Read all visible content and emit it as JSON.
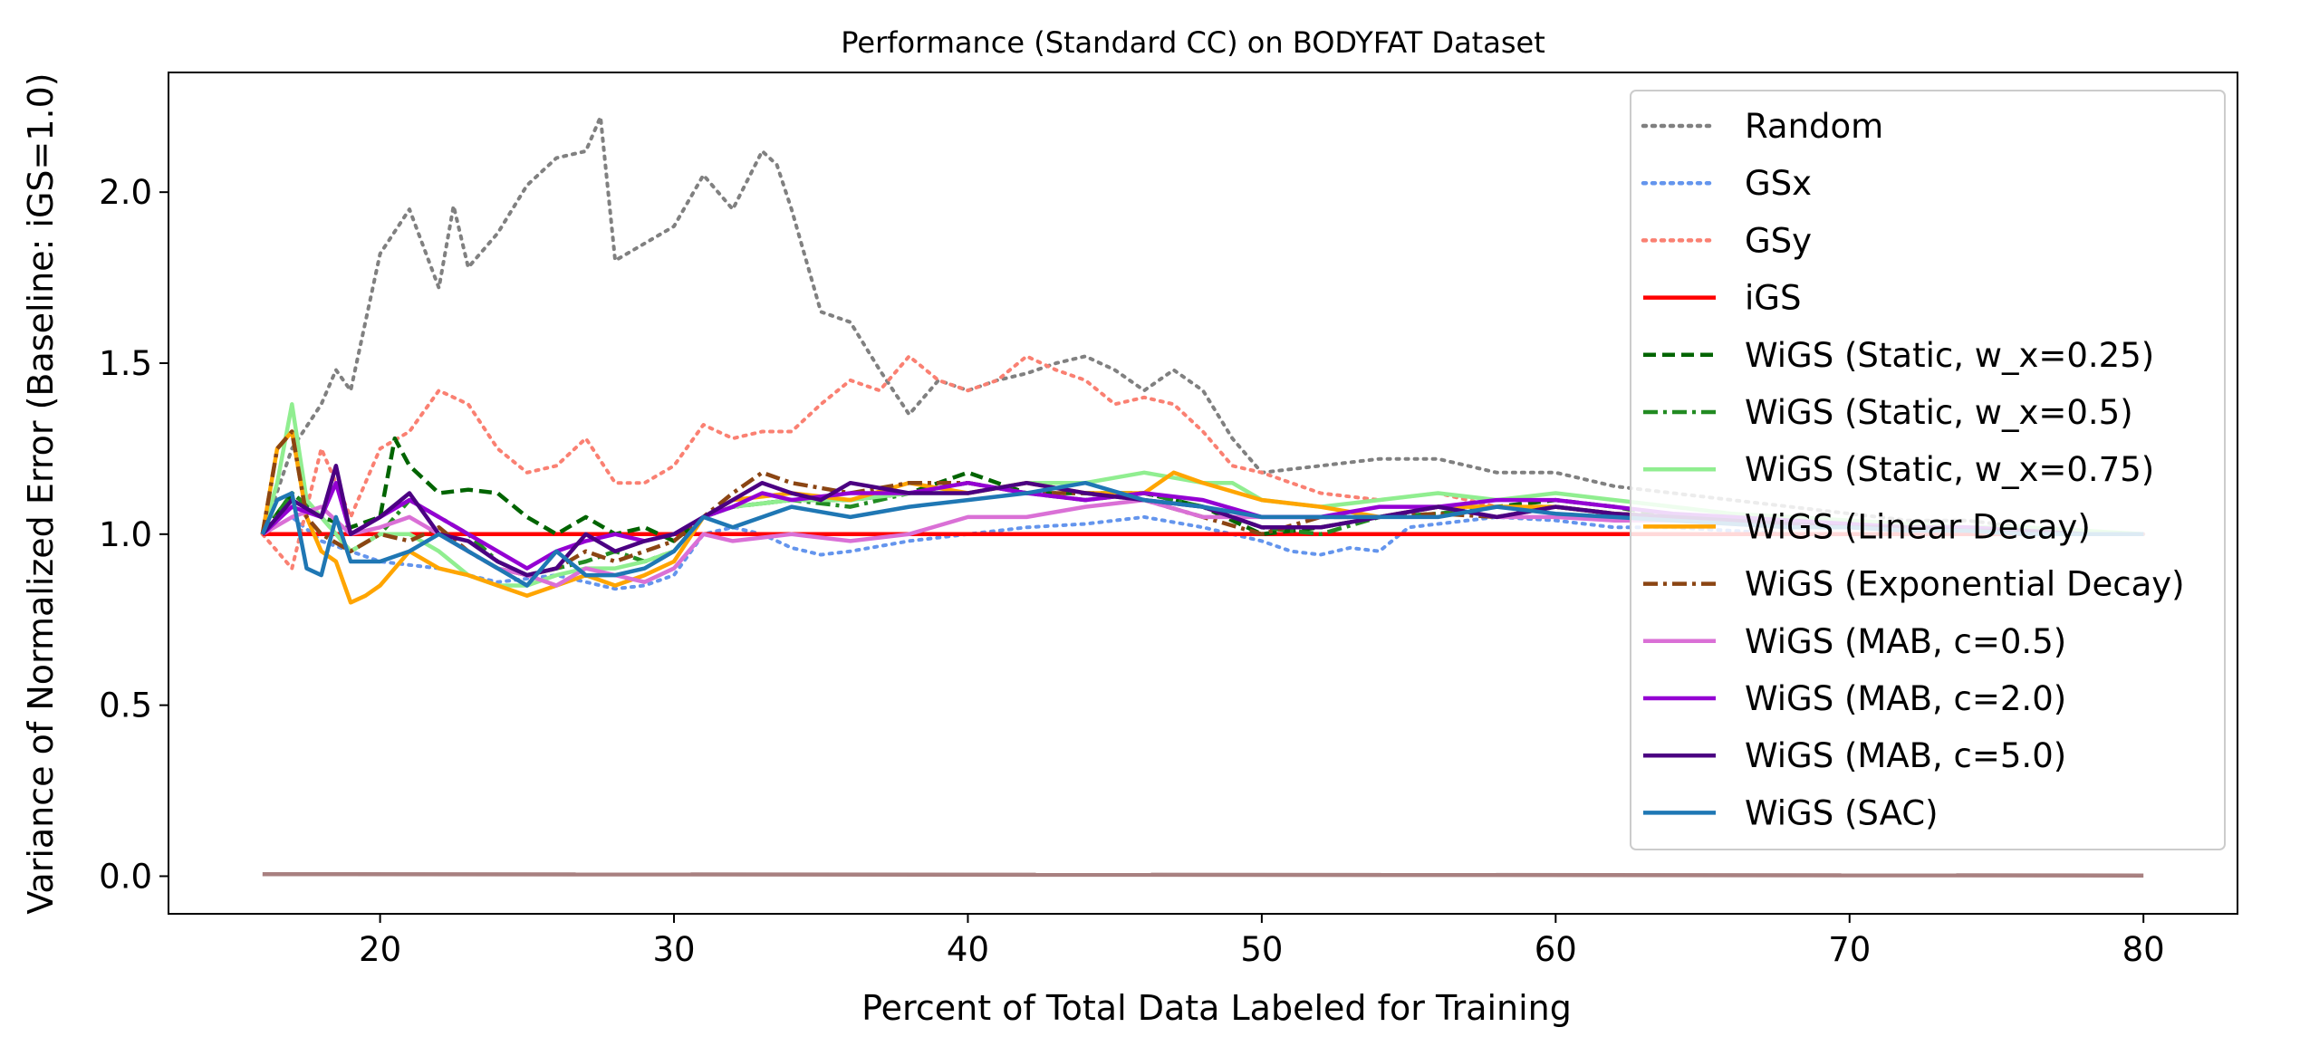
{
  "chart_data": {
    "type": "line",
    "title": "Performance (Standard CC) on BODYFAT Dataset",
    "xlabel": "Percent of Total Data Labeled for Training",
    "ylabel": "Variance of Normalized Error (Baseline: iGS=1.0)",
    "xlim": [
      12.8,
      83.2
    ],
    "ylim": [
      -0.11,
      2.35
    ],
    "xticks": [
      20,
      30,
      40,
      50,
      60,
      70,
      80
    ],
    "yticks": [
      0.0,
      0.5,
      1.0,
      1.5,
      2.0
    ],
    "ytick_labels": [
      "0.0",
      "0.5",
      "1.0",
      "1.5",
      "2.0"
    ],
    "grid": false,
    "legend_position": "upper right",
    "series": [
      {
        "name": "Random",
        "color": "#808080",
        "style": "dotted",
        "x": [
          16,
          17,
          18,
          18.5,
          19,
          20,
          21,
          22,
          22.5,
          23,
          24,
          25,
          26,
          27,
          27.5,
          28,
          29,
          30,
          31,
          32,
          33,
          33.5,
          34,
          35,
          36,
          37,
          38,
          39,
          40,
          41,
          42,
          43,
          44,
          45,
          46,
          47,
          48,
          49,
          50,
          52,
          54,
          56,
          58,
          60,
          62,
          64,
          66,
          68,
          70,
          72,
          74,
          76,
          78,
          80
        ],
        "y": [
          1.0,
          1.25,
          1.38,
          1.48,
          1.42,
          1.82,
          1.95,
          1.72,
          1.96,
          1.78,
          1.88,
          2.02,
          2.1,
          2.12,
          2.22,
          1.8,
          1.85,
          1.9,
          2.05,
          1.95,
          2.12,
          2.08,
          1.95,
          1.65,
          1.62,
          1.48,
          1.35,
          1.45,
          1.42,
          1.45,
          1.47,
          1.5,
          1.52,
          1.48,
          1.42,
          1.48,
          1.42,
          1.28,
          1.18,
          1.2,
          1.22,
          1.22,
          1.18,
          1.18,
          1.14,
          1.12,
          1.1,
          1.08,
          1.06,
          1.04,
          1.04,
          1.02,
          1.0,
          1.0
        ]
      },
      {
        "name": "GSx",
        "color": "#6495ed",
        "style": "dotted",
        "x": [
          16,
          17,
          18,
          19,
          20,
          22,
          24,
          26,
          28,
          29,
          30,
          31,
          32,
          33,
          34,
          35,
          36,
          38,
          40,
          42,
          44,
          46,
          48,
          50,
          51,
          52,
          53,
          54,
          55,
          56,
          58,
          60,
          62,
          64,
          66,
          68,
          70,
          72,
          74,
          76,
          78,
          80
        ],
        "y": [
          1.0,
          1.05,
          0.98,
          0.95,
          0.92,
          0.9,
          0.86,
          0.88,
          0.84,
          0.85,
          0.88,
          1.0,
          1.02,
          1.0,
          0.96,
          0.94,
          0.95,
          0.98,
          1.0,
          1.02,
          1.03,
          1.05,
          1.02,
          0.98,
          0.95,
          0.94,
          0.96,
          0.95,
          1.02,
          1.03,
          1.05,
          1.04,
          1.02,
          1.02,
          1.01,
          1.0,
          1.0,
          1.0,
          1.0,
          1.0,
          1.0,
          1.0
        ]
      },
      {
        "name": "GSy",
        "color": "#fa8072",
        "style": "dotted",
        "x": [
          16,
          17,
          18,
          19,
          20,
          21,
          22,
          23,
          24,
          25,
          26,
          27,
          28,
          29,
          30,
          31,
          32,
          33,
          34,
          35,
          36,
          37,
          38,
          39,
          40,
          41,
          42,
          43,
          44,
          45,
          46,
          47,
          48,
          49,
          50,
          52,
          54,
          56,
          58,
          60,
          62,
          64,
          66,
          68,
          70,
          72,
          74,
          76,
          78,
          80
        ],
        "y": [
          1.0,
          0.9,
          1.25,
          1.05,
          1.25,
          1.3,
          1.42,
          1.38,
          1.25,
          1.18,
          1.2,
          1.28,
          1.15,
          1.15,
          1.2,
          1.32,
          1.28,
          1.3,
          1.3,
          1.38,
          1.45,
          1.42,
          1.52,
          1.45,
          1.42,
          1.45,
          1.52,
          1.48,
          1.45,
          1.38,
          1.4,
          1.38,
          1.3,
          1.2,
          1.18,
          1.12,
          1.1,
          1.12,
          1.08,
          1.06,
          1.05,
          1.04,
          1.03,
          1.02,
          1.02,
          1.01,
          1.0,
          1.0,
          1.0,
          1.0
        ]
      },
      {
        "name": "iGS",
        "color": "#ff0000",
        "style": "solid",
        "x": [
          16,
          80
        ],
        "y": [
          1.0,
          1.0
        ]
      },
      {
        "name": "WiGS (Static, w_x=0.25)",
        "color": "#006400",
        "style": "dashed",
        "x": [
          16,
          17,
          18,
          19,
          20,
          20.5,
          21,
          22,
          23,
          24,
          25,
          26,
          27,
          28,
          29,
          30,
          31,
          32,
          34,
          36,
          38,
          40,
          41,
          42,
          44,
          46,
          48,
          50,
          52,
          54,
          56,
          58,
          60,
          62,
          64,
          66,
          68,
          70,
          72,
          74,
          76,
          78,
          80
        ],
        "y": [
          1.0,
          1.12,
          1.05,
          1.02,
          1.05,
          1.28,
          1.2,
          1.12,
          1.13,
          1.12,
          1.05,
          1.0,
          1.05,
          1.0,
          1.02,
          0.98,
          1.05,
          1.08,
          1.1,
          1.1,
          1.12,
          1.18,
          1.15,
          1.12,
          1.12,
          1.12,
          1.08,
          1.0,
          1.02,
          1.05,
          1.08,
          1.08,
          1.1,
          1.08,
          1.05,
          1.05,
          1.04,
          1.03,
          1.02,
          1.02,
          1.01,
          1.0,
          1.0
        ]
      },
      {
        "name": "WiGS (Static, w_x=0.5)",
        "color": "#228b22",
        "style": "dashdot",
        "x": [
          16,
          17,
          18,
          19,
          20,
          21,
          22,
          23,
          24,
          25,
          26,
          27,
          28,
          29,
          30,
          31,
          32,
          34,
          36,
          38,
          40,
          42,
          44,
          46,
          48,
          50,
          52,
          54,
          56,
          58,
          60,
          62,
          64,
          66,
          68,
          70,
          72,
          74,
          76,
          78,
          80
        ],
        "y": [
          1.0,
          1.12,
          1.05,
          0.95,
          1.0,
          1.1,
          1.05,
          1.0,
          0.92,
          0.88,
          0.9,
          0.92,
          0.95,
          0.92,
          0.95,
          1.05,
          1.08,
          1.1,
          1.08,
          1.12,
          1.15,
          1.12,
          1.1,
          1.12,
          1.08,
          1.02,
          1.0,
          1.05,
          1.06,
          1.08,
          1.08,
          1.06,
          1.05,
          1.04,
          1.03,
          1.02,
          1.02,
          1.01,
          1.0,
          1.0,
          1.0
        ]
      },
      {
        "name": "WiGS (Static, w_x=0.75)",
        "color": "#90ee90",
        "style": "solid",
        "x": [
          16,
          16.5,
          17,
          17.5,
          18,
          19,
          20,
          21,
          22,
          23,
          24,
          25,
          26,
          27,
          28,
          29,
          30,
          31,
          32,
          34,
          36,
          38,
          40,
          42,
          44,
          46,
          48,
          49,
          50,
          52,
          54,
          56,
          58,
          60,
          62,
          64,
          66,
          68,
          70,
          72,
          74,
          76,
          78,
          80
        ],
        "y": [
          1.0,
          1.15,
          1.38,
          1.1,
          1.05,
          0.95,
          1.0,
          1.0,
          0.95,
          0.88,
          0.85,
          0.85,
          0.88,
          0.9,
          0.9,
          0.92,
          0.95,
          1.05,
          1.08,
          1.1,
          1.1,
          1.12,
          1.12,
          1.15,
          1.15,
          1.18,
          1.15,
          1.15,
          1.1,
          1.08,
          1.1,
          1.12,
          1.1,
          1.12,
          1.1,
          1.08,
          1.06,
          1.05,
          1.04,
          1.03,
          1.02,
          1.02,
          1.01,
          1.0
        ]
      },
      {
        "name": "WiGS (Linear Decay)",
        "color": "#ffa500",
        "style": "solid",
        "x": [
          16,
          16.5,
          17,
          17.5,
          18,
          18.5,
          19,
          19.5,
          20,
          21,
          22,
          23,
          24,
          25,
          26,
          27,
          28,
          29,
          30,
          31,
          32,
          34,
          36,
          38,
          40,
          42,
          44,
          46,
          47,
          48,
          50,
          52,
          54,
          56,
          58,
          60,
          62,
          64,
          66,
          68,
          70,
          72,
          74,
          76,
          78,
          80
        ],
        "y": [
          1.0,
          1.25,
          1.3,
          1.05,
          0.95,
          0.92,
          0.8,
          0.82,
          0.85,
          0.95,
          0.9,
          0.88,
          0.85,
          0.82,
          0.85,
          0.88,
          0.85,
          0.88,
          0.92,
          1.05,
          1.1,
          1.12,
          1.1,
          1.15,
          1.12,
          1.15,
          1.12,
          1.12,
          1.18,
          1.15,
          1.1,
          1.08,
          1.05,
          1.08,
          1.08,
          1.08,
          1.06,
          1.05,
          1.04,
          1.03,
          1.02,
          1.02,
          1.01,
          1.01,
          1.0,
          1.0
        ]
      },
      {
        "name": "WiGS (Exponential Decay)",
        "color": "#8b4513",
        "style": "dashdot",
        "x": [
          16,
          16.5,
          17,
          17.5,
          18,
          19,
          20,
          21,
          22,
          23,
          24,
          25,
          26,
          27,
          28,
          29,
          30,
          31,
          32,
          33,
          34,
          36,
          38,
          40,
          42,
          44,
          46,
          48,
          50,
          52,
          54,
          56,
          58,
          60,
          62,
          64,
          66,
          68,
          70,
          72,
          74,
          76,
          78,
          80
        ],
        "y": [
          1.0,
          1.25,
          1.3,
          1.05,
          1.0,
          0.95,
          1.0,
          0.98,
          1.02,
          0.95,
          0.9,
          0.88,
          0.9,
          0.95,
          0.92,
          0.95,
          0.98,
          1.05,
          1.12,
          1.18,
          1.15,
          1.12,
          1.15,
          1.15,
          1.12,
          1.12,
          1.1,
          1.05,
          1.0,
          1.05,
          1.05,
          1.06,
          1.05,
          1.08,
          1.06,
          1.05,
          1.04,
          1.03,
          1.02,
          1.02,
          1.01,
          1.01,
          1.0,
          1.0
        ]
      },
      {
        "name": "WiGS (MAB, c=0.5)",
        "color": "#da70d6",
        "style": "solid",
        "x": [
          16,
          17,
          18,
          19,
          20,
          21,
          22,
          23,
          24,
          25,
          26,
          27,
          28,
          29,
          30,
          31,
          32,
          34,
          36,
          38,
          40,
          42,
          44,
          46,
          48,
          50,
          52,
          54,
          56,
          58,
          60,
          62,
          64,
          66,
          68,
          70,
          72,
          74,
          76,
          78,
          80
        ],
        "y": [
          1.0,
          1.05,
          1.08,
          1.0,
          1.02,
          1.05,
          1.0,
          0.95,
          0.9,
          0.88,
          0.85,
          0.9,
          0.88,
          0.86,
          0.9,
          1.0,
          0.98,
          1.0,
          0.98,
          1.0,
          1.05,
          1.05,
          1.08,
          1.1,
          1.05,
          1.05,
          1.05,
          1.05,
          1.08,
          1.05,
          1.05,
          1.04,
          1.04,
          1.03,
          1.02,
          1.02,
          1.01,
          1.01,
          1.0,
          1.0,
          1.0
        ]
      },
      {
        "name": "WiGS (MAB, c=2.0)",
        "color": "#9400d3",
        "style": "solid",
        "x": [
          16,
          17,
          18,
          18.5,
          19,
          20,
          21,
          22,
          23,
          24,
          25,
          26,
          27,
          28,
          29,
          30,
          31,
          32,
          33,
          34,
          36,
          38,
          40,
          42,
          44,
          46,
          48,
          50,
          52,
          54,
          56,
          58,
          60,
          62,
          64,
          66,
          68,
          70,
          72,
          74,
          76,
          78,
          80
        ],
        "y": [
          1.0,
          1.08,
          1.05,
          1.15,
          1.0,
          1.05,
          1.1,
          1.05,
          1.0,
          0.95,
          0.9,
          0.95,
          0.98,
          1.0,
          0.98,
          1.0,
          1.05,
          1.08,
          1.12,
          1.1,
          1.12,
          1.12,
          1.15,
          1.12,
          1.1,
          1.12,
          1.1,
          1.05,
          1.05,
          1.08,
          1.08,
          1.1,
          1.1,
          1.08,
          1.06,
          1.05,
          1.04,
          1.03,
          1.02,
          1.02,
          1.01,
          1.0,
          1.0
        ]
      },
      {
        "name": "WiGS (MAB, c=5.0)",
        "color": "#4b0082",
        "style": "solid",
        "x": [
          16,
          17,
          18,
          18.5,
          19,
          20,
          21,
          22,
          23,
          24,
          25,
          26,
          27,
          28,
          29,
          30,
          31,
          32,
          33,
          34,
          35,
          36,
          38,
          40,
          42,
          44,
          46,
          48,
          50,
          52,
          54,
          56,
          58,
          60,
          62,
          64,
          66,
          68,
          70,
          72,
          74,
          76,
          78,
          80
        ],
        "y": [
          1.0,
          1.1,
          1.05,
          1.2,
          1.0,
          1.05,
          1.12,
          1.0,
          0.98,
          0.92,
          0.88,
          0.9,
          1.0,
          0.95,
          0.98,
          1.0,
          1.05,
          1.1,
          1.15,
          1.12,
          1.1,
          1.15,
          1.12,
          1.12,
          1.15,
          1.12,
          1.1,
          1.08,
          1.02,
          1.02,
          1.05,
          1.08,
          1.05,
          1.08,
          1.06,
          1.05,
          1.04,
          1.03,
          1.02,
          1.02,
          1.01,
          1.01,
          1.0,
          1.0
        ]
      },
      {
        "name": "WiGS (SAC)",
        "color": "#1f77b4",
        "style": "solid",
        "x": [
          16,
          16.5,
          17,
          17.5,
          18,
          18.5,
          19,
          20,
          21,
          22,
          23,
          24,
          25,
          26,
          27,
          28,
          29,
          30,
          31,
          32,
          34,
          36,
          38,
          40,
          42,
          44,
          46,
          48,
          50,
          52,
          54,
          56,
          58,
          60,
          62,
          64,
          66,
          68,
          70,
          72,
          74,
          76,
          78,
          80
        ],
        "y": [
          1.0,
          1.1,
          1.12,
          0.9,
          0.88,
          1.05,
          0.92,
          0.92,
          0.95,
          1.0,
          0.95,
          0.9,
          0.85,
          0.95,
          0.88,
          0.88,
          0.9,
          0.95,
          1.05,
          1.02,
          1.08,
          1.05,
          1.08,
          1.1,
          1.12,
          1.15,
          1.1,
          1.08,
          1.05,
          1.05,
          1.05,
          1.05,
          1.08,
          1.06,
          1.05,
          1.04,
          1.03,
          1.02,
          1.02,
          1.01,
          1.01,
          1.0,
          1.0,
          1.0
        ]
      },
      {
        "name": "",
        "color": "#a88080",
        "style": "solid",
        "x": [
          16,
          80
        ],
        "y": [
          0.006,
          0.002
        ]
      }
    ]
  }
}
